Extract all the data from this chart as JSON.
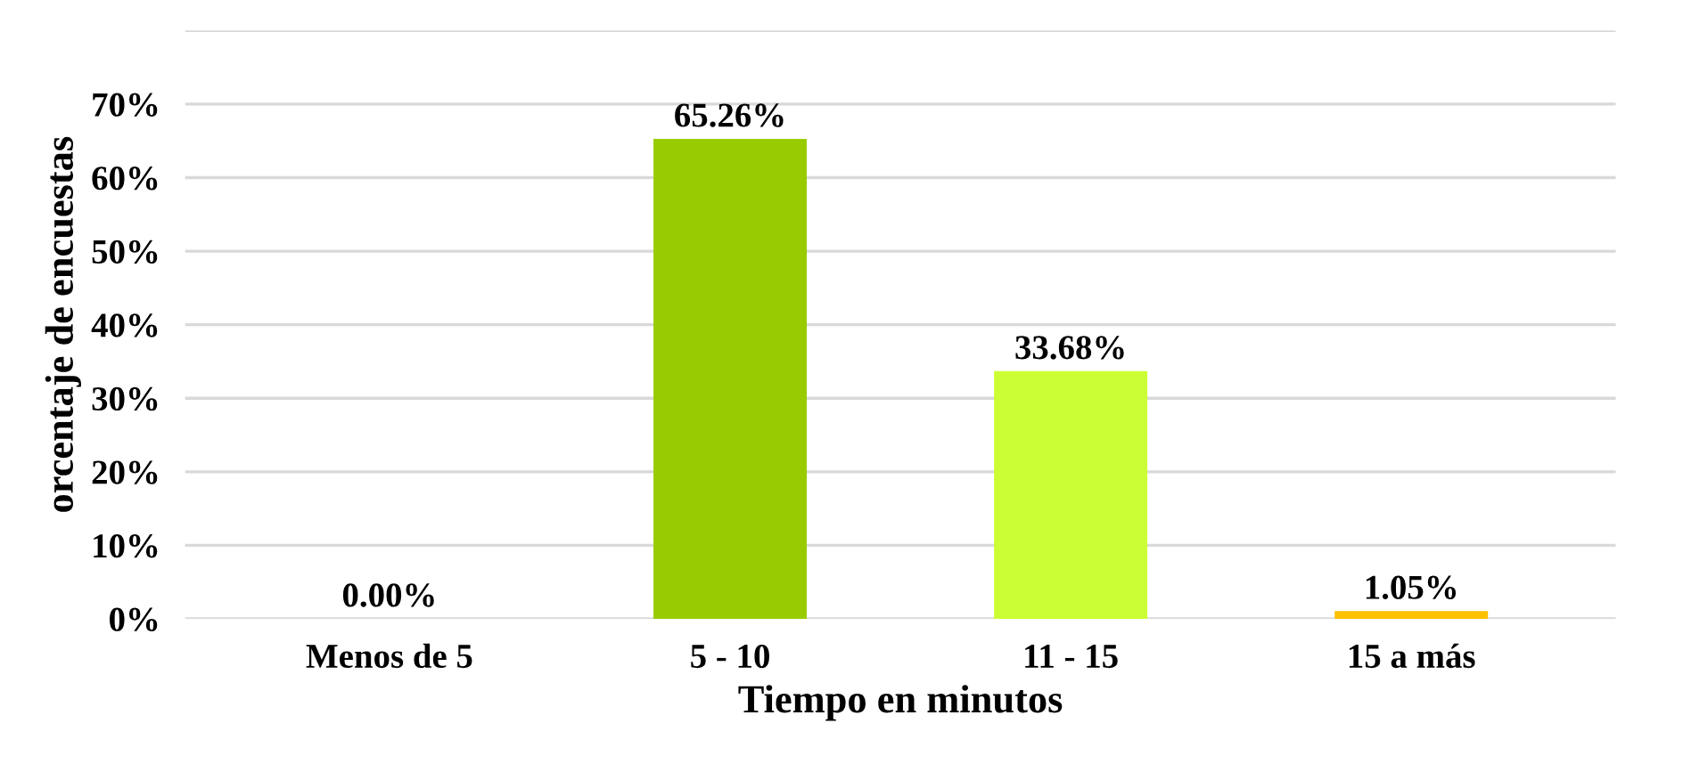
{
  "chart_data": {
    "type": "bar",
    "xlabel": "Tiempo en minutos",
    "ylabel": "orcentaje de encuestas",
    "categories": [
      "Menos de 5",
      "5 - 10",
      "11 - 15",
      "15 a más"
    ],
    "values": [
      0.0,
      65.26,
      33.68,
      1.05
    ],
    "colors": [
      "#007a99",
      "#99cc00",
      "#ccff33",
      "#ffc000"
    ],
    "value_labels": [
      "0.00%",
      "65.26%",
      "33.68%",
      "1.05%"
    ],
    "ylim": [
      0,
      80
    ],
    "yticks": [
      {
        "value": 0,
        "label": "0%"
      },
      {
        "value": 10,
        "label": "10%"
      },
      {
        "value": 20,
        "label": "20%"
      },
      {
        "value": 30,
        "label": "30%"
      },
      {
        "value": 40,
        "label": "40%"
      },
      {
        "value": 50,
        "label": "50%"
      },
      {
        "value": 60,
        "label": "60%"
      },
      {
        "value": 70,
        "label": "70%"
      },
      {
        "value": 80,
        "label": null
      }
    ],
    "grid": "y",
    "legend": false
  }
}
